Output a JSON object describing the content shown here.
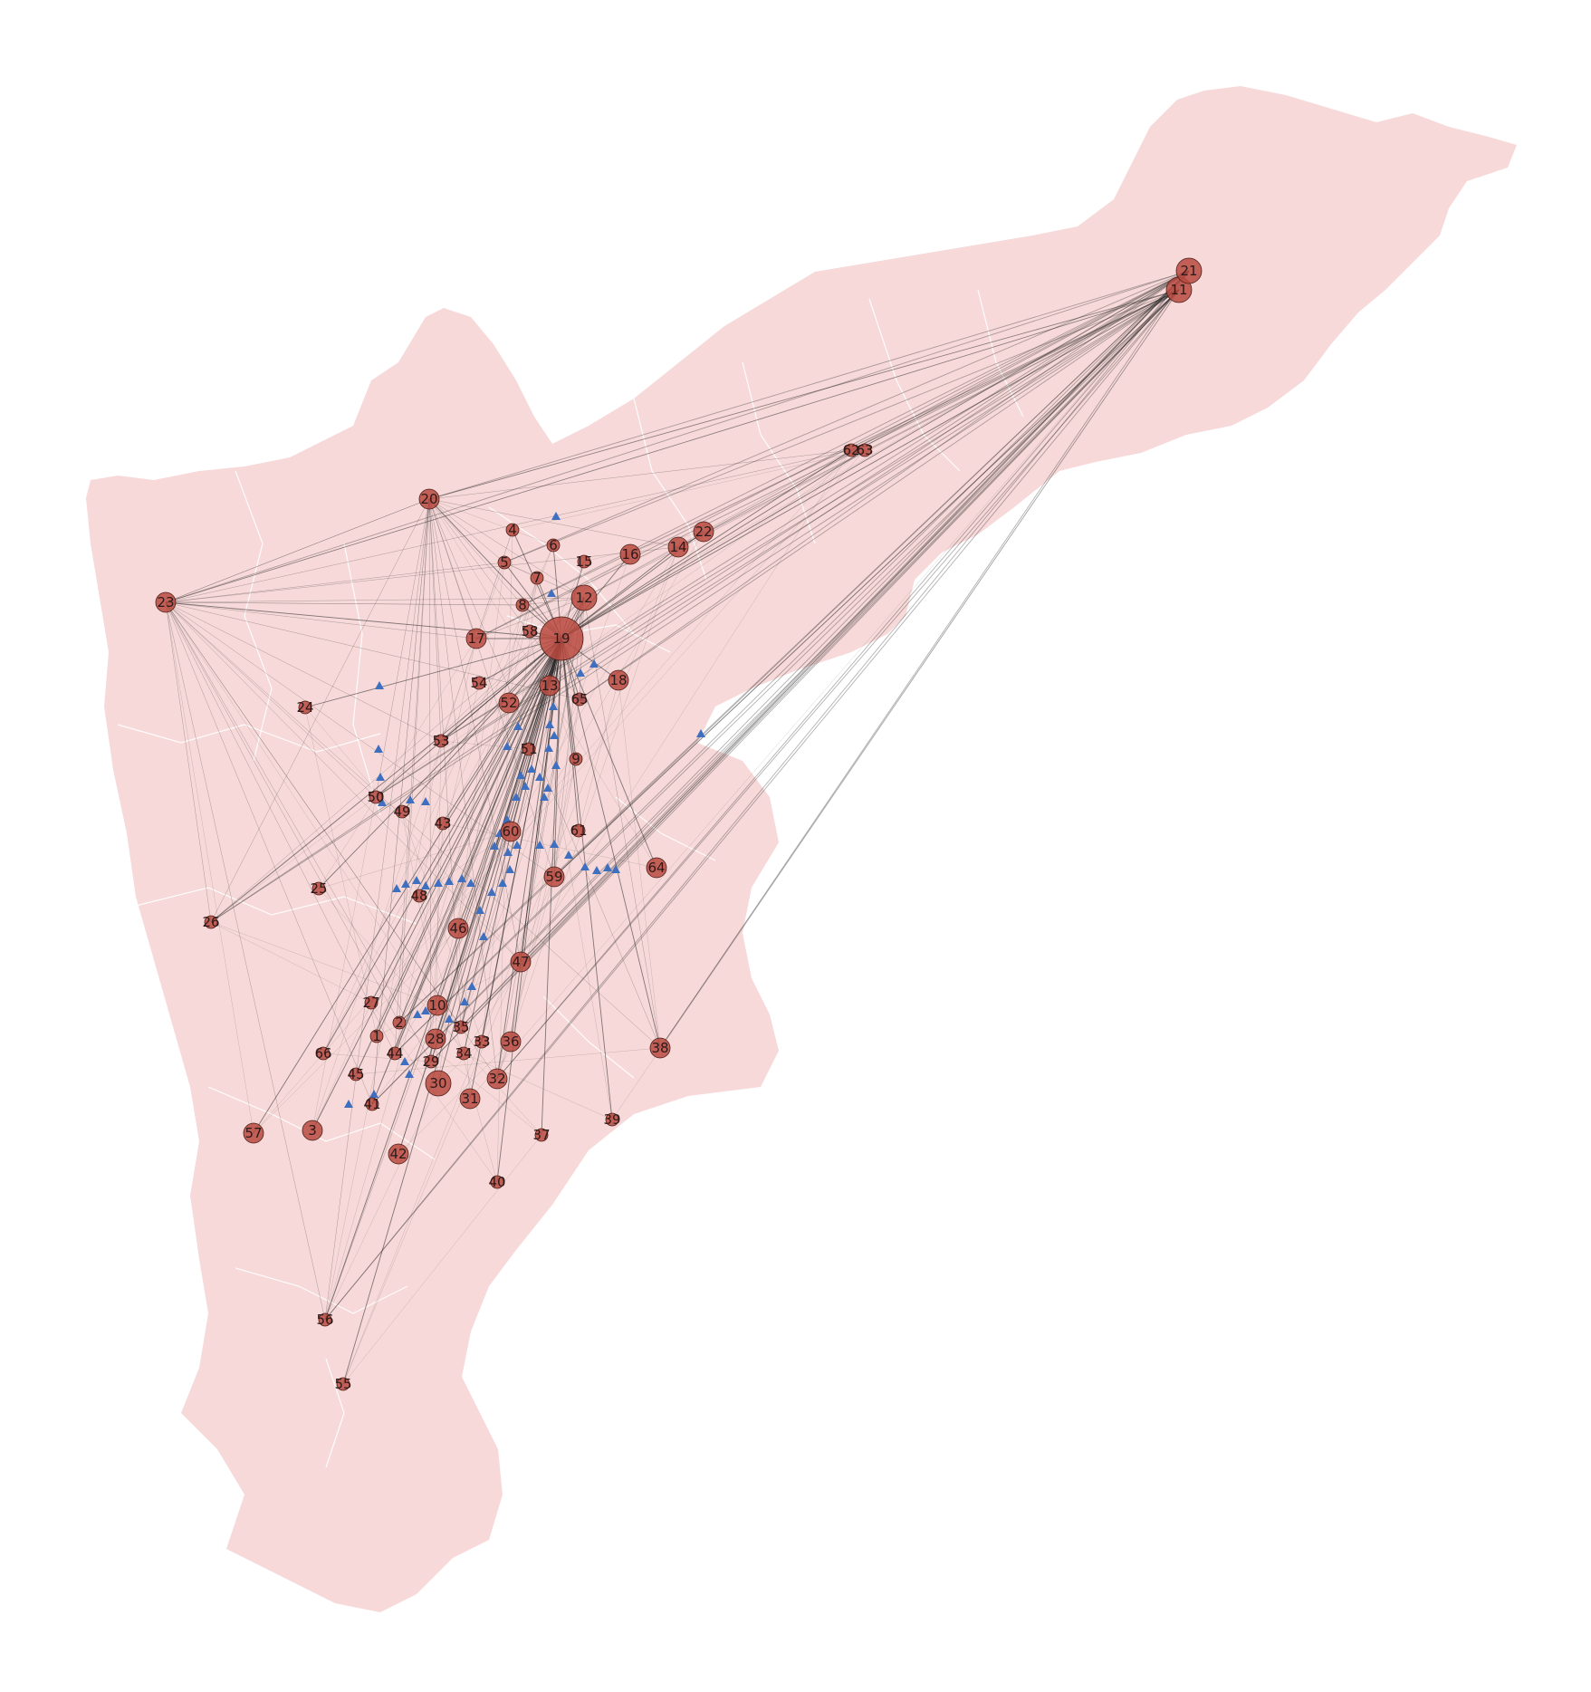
{
  "colors": {
    "region_fill": "#f7d9d9",
    "boundary": "#ffffff",
    "node_fill": "#b84a3f",
    "edge": "#222222",
    "poi_marker": "#3f6fbf"
  },
  "map": {
    "nodes": [
      {
        "id": "1",
        "weight": 1
      },
      {
        "id": "2",
        "weight": 1
      },
      {
        "id": "3",
        "weight": 2
      },
      {
        "id": "4",
        "weight": 1
      },
      {
        "id": "5",
        "weight": 1
      },
      {
        "id": "6",
        "weight": 1
      },
      {
        "id": "7",
        "weight": 1
      },
      {
        "id": "8",
        "weight": 1
      },
      {
        "id": "9",
        "weight": 1
      },
      {
        "id": "10",
        "weight": 2
      },
      {
        "id": "11",
        "weight": 3
      },
      {
        "id": "12",
        "weight": 3
      },
      {
        "id": "13",
        "weight": 2
      },
      {
        "id": "14",
        "weight": 2
      },
      {
        "id": "15",
        "weight": 1
      },
      {
        "id": "16",
        "weight": 2
      },
      {
        "id": "17",
        "weight": 2
      },
      {
        "id": "18",
        "weight": 2
      },
      {
        "id": "19",
        "weight": 6
      },
      {
        "id": "20",
        "weight": 2
      },
      {
        "id": "21",
        "weight": 3
      },
      {
        "id": "22",
        "weight": 2
      },
      {
        "id": "23",
        "weight": 2
      },
      {
        "id": "24",
        "weight": 1
      },
      {
        "id": "25",
        "weight": 1
      },
      {
        "id": "26",
        "weight": 1
      },
      {
        "id": "27",
        "weight": 1
      },
      {
        "id": "28",
        "weight": 2
      },
      {
        "id": "29",
        "weight": 1
      },
      {
        "id": "30",
        "weight": 3
      },
      {
        "id": "31",
        "weight": 2
      },
      {
        "id": "32",
        "weight": 2
      },
      {
        "id": "33",
        "weight": 1
      },
      {
        "id": "34",
        "weight": 1
      },
      {
        "id": "35",
        "weight": 1
      },
      {
        "id": "36",
        "weight": 2
      },
      {
        "id": "37",
        "weight": 1
      },
      {
        "id": "38",
        "weight": 2
      },
      {
        "id": "39",
        "weight": 1
      },
      {
        "id": "40",
        "weight": 1
      },
      {
        "id": "41",
        "weight": 1
      },
      {
        "id": "42",
        "weight": 2
      },
      {
        "id": "43",
        "weight": 1
      },
      {
        "id": "44",
        "weight": 1
      },
      {
        "id": "45",
        "weight": 1
      },
      {
        "id": "46",
        "weight": 2
      },
      {
        "id": "47",
        "weight": 2
      },
      {
        "id": "48",
        "weight": 1
      },
      {
        "id": "49",
        "weight": 1
      },
      {
        "id": "50",
        "weight": 1
      },
      {
        "id": "51",
        "weight": 1
      },
      {
        "id": "52",
        "weight": 2
      },
      {
        "id": "53",
        "weight": 1
      },
      {
        "id": "54",
        "weight": 1
      },
      {
        "id": "55",
        "weight": 1
      },
      {
        "id": "56",
        "weight": 1
      },
      {
        "id": "57",
        "weight": 2
      },
      {
        "id": "58",
        "weight": 1
      },
      {
        "id": "59",
        "weight": 2
      },
      {
        "id": "60",
        "weight": 2
      },
      {
        "id": "61",
        "weight": 1
      },
      {
        "id": "62",
        "weight": 1
      },
      {
        "id": "63",
        "weight": 1
      },
      {
        "id": "64",
        "weight": 2
      },
      {
        "id": "65",
        "weight": 1
      },
      {
        "id": "66",
        "weight": 1
      }
    ]
  }
}
